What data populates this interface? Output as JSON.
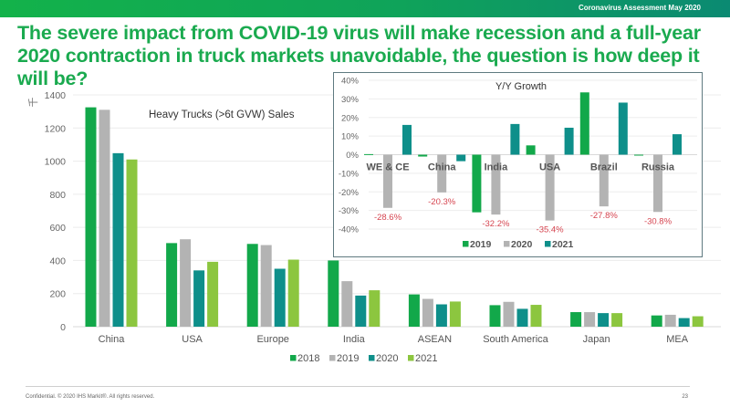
{
  "header": {
    "report_label": "Coronavirus Assessment  May 2020",
    "headline": "The severe impact from COVID-19 virus will make recession and a full-year 2020 contraction in truck markets unavoidable, the question is how deep it will be?"
  },
  "colors": {
    "y2018": "#12a84a",
    "y2019_main": "#b3b3b3",
    "y2020_main": "#0e8f8a",
    "y2021_main": "#8cc63f",
    "inset_2019": "#12a84a",
    "inset_2020": "#b3b3b3",
    "inset_2021": "#0e8f8a",
    "label_red": "#d64550",
    "headline_green": "#1aaa4f"
  },
  "chart_data": [
    {
      "type": "bar",
      "title": "Heavy Trucks (>6t GVW) Sales",
      "ylabel": "千",
      "xlabel": "",
      "ylim": [
        0,
        1400
      ],
      "yticks": [
        "0",
        "200",
        "400",
        "600",
        "800",
        "1000",
        "1200",
        "1400"
      ],
      "grid": true,
      "legend": "bottom",
      "categories": [
        "China",
        "USA",
        "Europe",
        "India",
        "ASEAN",
        "South America",
        "Japan",
        "MEA"
      ],
      "series": [
        {
          "name": "2018",
          "values": [
            1325,
            505,
            500,
            400,
            195,
            130,
            88,
            68
          ]
        },
        {
          "name": "2019",
          "values": [
            1310,
            528,
            493,
            275,
            168,
            150,
            88,
            72
          ]
        },
        {
          "name": "2020",
          "values": [
            1048,
            340,
            350,
            188,
            135,
            108,
            82,
            52
          ]
        },
        {
          "name": "2021",
          "values": [
            1010,
            392,
            405,
            220,
            152,
            132,
            82,
            63
          ]
        }
      ]
    },
    {
      "type": "bar",
      "title": "Y/Y Growth",
      "xlabel": "",
      "ylabel": "",
      "ylim": [
        -40,
        40
      ],
      "yticks": [
        "40%",
        "30%",
        "20%",
        "10%",
        "0%",
        "-10%",
        "-20%",
        "-30%",
        "-40%"
      ],
      "grid": true,
      "legend": "bottom",
      "categories": [
        "WE & CE",
        "China",
        "India",
        "USA",
        "Brazil",
        "Russia"
      ],
      "series": [
        {
          "name": "2019",
          "values": [
            0.3,
            -1.0,
            -31.0,
            5.0,
            33.5,
            -0.5
          ]
        },
        {
          "name": "2020",
          "values": [
            -28.6,
            -20.3,
            -32.2,
            -35.4,
            -27.8,
            -30.8
          ]
        },
        {
          "name": "2021",
          "values": [
            16.0,
            -3.5,
            16.5,
            14.5,
            28.0,
            11.0
          ]
        }
      ],
      "data_labels": {
        "series": "2020",
        "labels": [
          "-28.6%",
          "-20.3%",
          "-32.2%",
          "-35.4%",
          "-27.8%",
          "-30.8%"
        ]
      }
    }
  ],
  "footer": {
    "confidential": "Confidential. © 2020 IHS Markit®. All rights reserved.",
    "page_number": "23"
  }
}
